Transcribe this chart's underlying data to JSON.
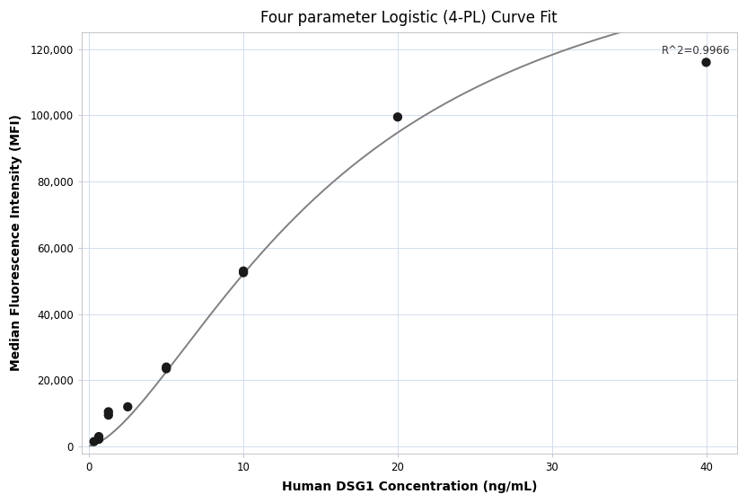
{
  "title": "Four parameter Logistic (4-PL) Curve Fit",
  "xlabel": "Human DSG1 Concentration (ng/mL)",
  "ylabel": "Median Fluorescence Intensity (MFI)",
  "r_squared_label": "R^2=0.9966",
  "scatter_x": [
    0.313,
    0.625,
    0.625,
    1.25,
    1.25,
    2.5,
    5.0,
    5.0,
    10.0,
    10.0,
    20.0,
    40.0
  ],
  "scatter_y": [
    1500,
    3000,
    2200,
    9500,
    10500,
    12000,
    23500,
    24000,
    52500,
    53000,
    99500,
    116000
  ],
  "scatter_color": "#1a1a1a",
  "scatter_size": 55,
  "curve_color": "#808080",
  "curve_lw": 1.4,
  "xlim": [
    -0.5,
    42
  ],
  "ylim": [
    -2000,
    125000
  ],
  "xticks": [
    0,
    10,
    20,
    30,
    40
  ],
  "yticks": [
    0,
    20000,
    40000,
    60000,
    80000,
    100000,
    120000
  ],
  "ytick_labels": [
    "0",
    "20,000",
    "40,000",
    "60,000",
    "80,000",
    "100,000",
    "120,000"
  ],
  "grid_color": "#ccd8ea",
  "grid_alpha": 1.0,
  "bg_color": "#ffffff",
  "title_fontsize": 12,
  "label_fontsize": 10,
  "tick_fontsize": 8.5,
  "annotation_fontsize": 8.5,
  "4pl_A": 200,
  "4pl_B": 1.55,
  "4pl_C": 16.5,
  "4pl_D": 165000
}
